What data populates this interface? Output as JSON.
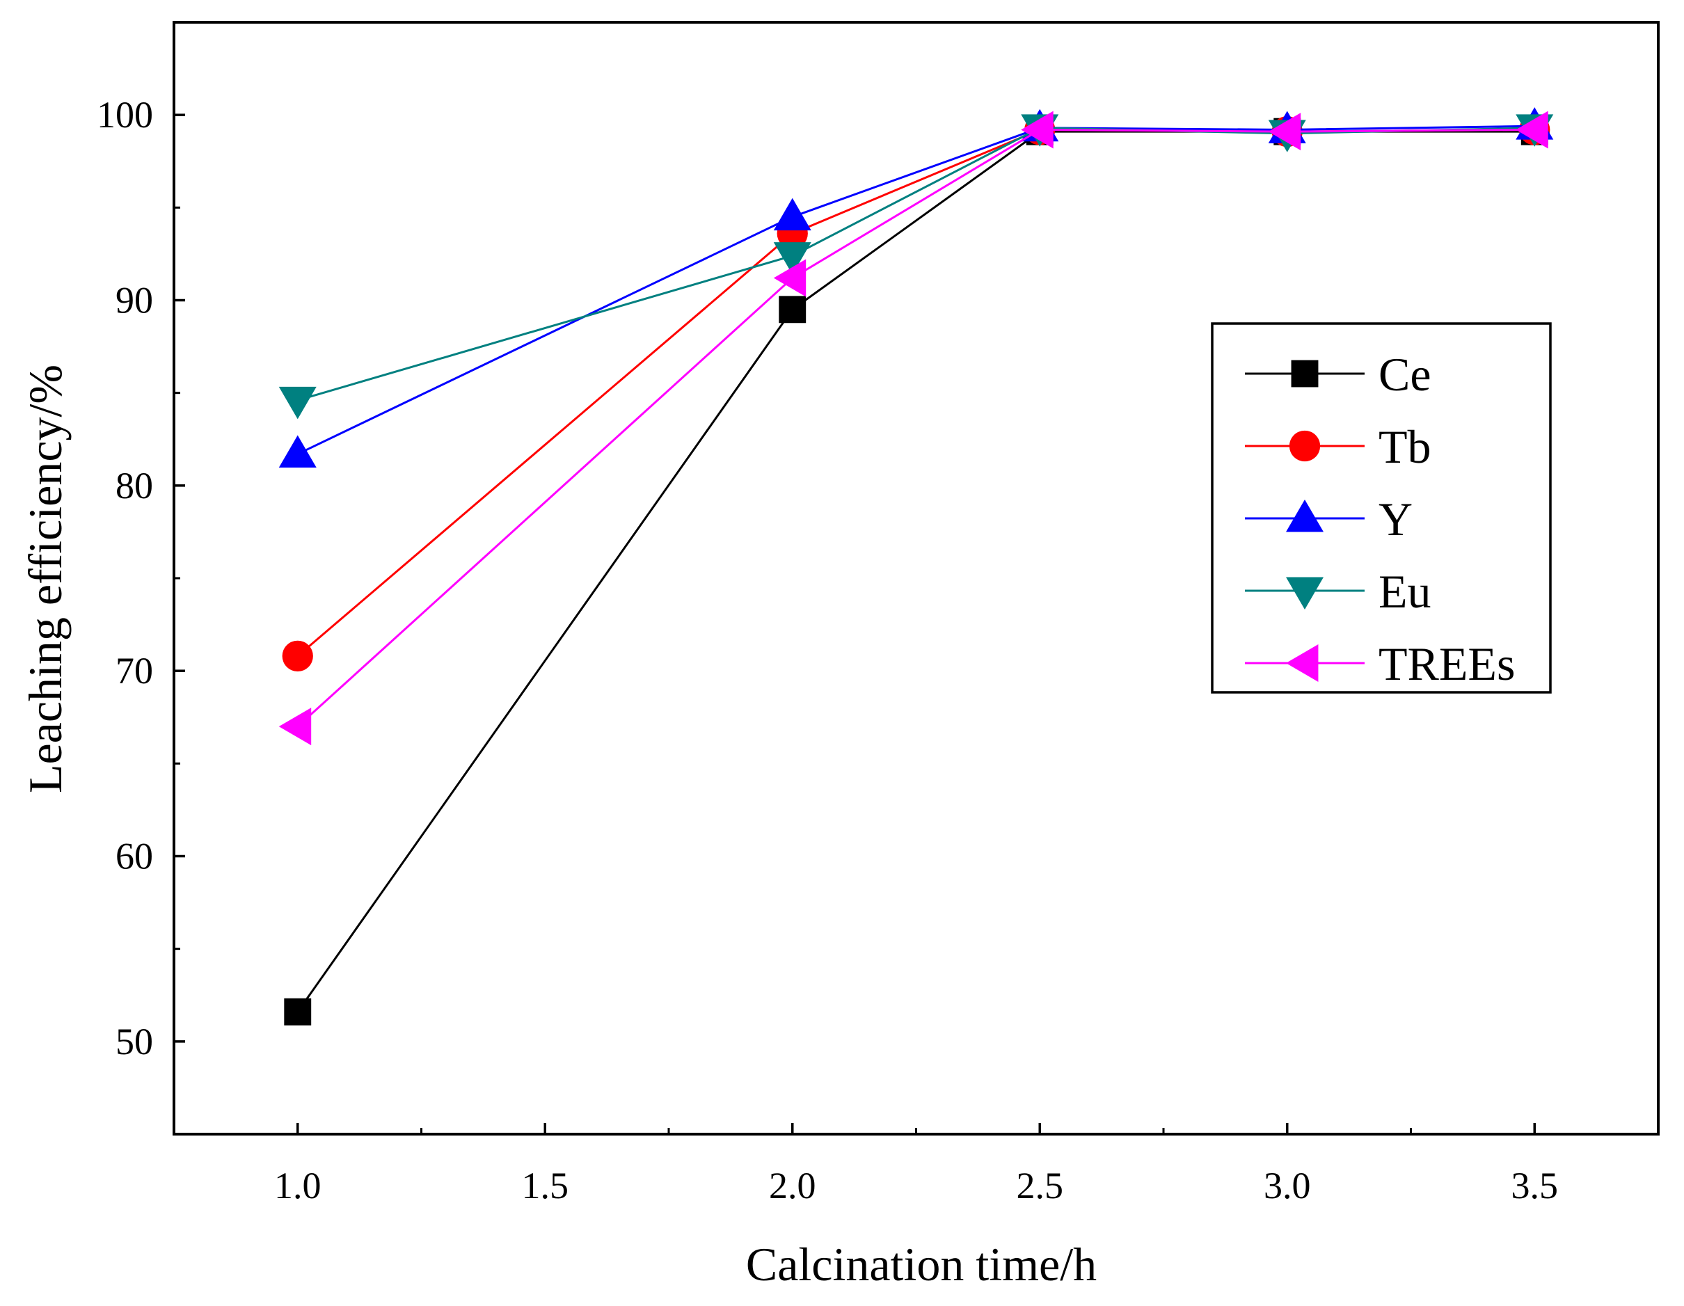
{
  "chart_data": {
    "type": "line",
    "title": "",
    "xlabel": "Calcination time/h",
    "ylabel": "Leaching efficiency/%",
    "xlim": [
      0.75,
      3.75
    ],
    "ylim": [
      45,
      105
    ],
    "xticks": [
      1.0,
      1.5,
      2.0,
      2.5,
      3.0,
      3.5
    ],
    "xtick_labels": [
      "1.0",
      "1.5",
      "2.0",
      "2.5",
      "3.0",
      "3.5"
    ],
    "yticks": [
      50,
      60,
      70,
      80,
      90,
      100
    ],
    "ytick_labels": [
      "50",
      "60",
      "70",
      "80",
      "90",
      "100"
    ],
    "grid": false,
    "legend_position": "right",
    "x": [
      1.0,
      2.0,
      2.5,
      3.0,
      3.5
    ],
    "series": [
      {
        "name": "Ce",
        "color": "#000000",
        "marker": "square",
        "values": [
          51.6,
          89.5,
          99.1,
          99.1,
          99.1
        ]
      },
      {
        "name": "Tb",
        "color": "#ff0000",
        "marker": "circle",
        "values": [
          70.8,
          93.6,
          99.2,
          99.1,
          99.2
        ]
      },
      {
        "name": "Y",
        "color": "#0000ff",
        "marker": "triangle-up",
        "values": [
          81.7,
          94.5,
          99.3,
          99.2,
          99.4
        ]
      },
      {
        "name": "Eu",
        "color": "#008080",
        "marker": "triangle-down",
        "values": [
          84.6,
          92.4,
          99.3,
          99.0,
          99.3
        ]
      },
      {
        "name": "TREEs",
        "color": "#ff00ff",
        "marker": "triangle-left",
        "values": [
          67.0,
          91.2,
          99.2,
          99.1,
          99.2
        ]
      }
    ]
  }
}
